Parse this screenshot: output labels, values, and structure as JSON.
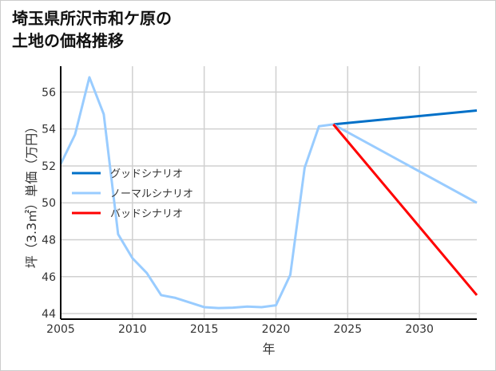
{
  "chart_data": {
    "type": "line",
    "title": "埼玉県所沢市和ケ原の\n土地の価格推移",
    "xlabel": "年",
    "ylabel": "坪（3.3㎡）単価（万円）",
    "xlim": [
      2005,
      2034
    ],
    "ylim": [
      43.7,
      57.4
    ],
    "xticks": [
      2005,
      2010,
      2015,
      2020,
      2025,
      2030
    ],
    "yticks": [
      44,
      46,
      48,
      50,
      52,
      54,
      56
    ],
    "grid": true,
    "legend_position": "center-left",
    "series": [
      {
        "name": "グッドシナリオ",
        "color": "#0070c8",
        "x": [
          2024,
          2034
        ],
        "y": [
          54.25,
          55.0
        ]
      },
      {
        "name": "ノーマルシナリオ",
        "color": "#99ccff",
        "x": [
          2005,
          2006,
          2007,
          2008,
          2009,
          2010,
          2011,
          2012,
          2013,
          2014,
          2015,
          2016,
          2017,
          2018,
          2019,
          2020,
          2021,
          2022,
          2023,
          2024,
          2034
        ],
        "y": [
          52.1,
          53.7,
          56.8,
          54.8,
          48.3,
          47.0,
          46.2,
          45.0,
          44.85,
          44.6,
          44.35,
          44.3,
          44.32,
          44.38,
          44.35,
          44.45,
          46.1,
          51.9,
          54.15,
          54.25,
          50.0
        ]
      },
      {
        "name": "バッドシナリオ",
        "color": "#ff0000",
        "x": [
          2024,
          2034
        ],
        "y": [
          54.25,
          45.0
        ]
      }
    ]
  }
}
